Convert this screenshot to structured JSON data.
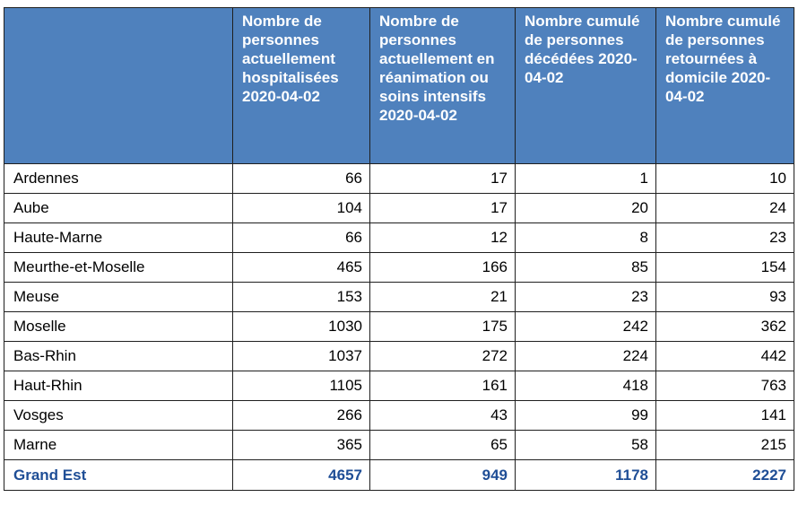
{
  "table": {
    "headers": [
      "",
      "Nombre de personnes actuellement hospitalisées 2020-04-02",
      "Nombre de personnes actuellement en réanimation ou soins intensifs 2020-04-02",
      "Nombre cumulé de personnes décédées 2020-04-02",
      "Nombre cumulé de personnes retournées à domicile 2020-04-02"
    ],
    "rows": [
      [
        "Ardennes",
        "66",
        "17",
        "1",
        "10"
      ],
      [
        "Aube",
        "104",
        "17",
        "20",
        "24"
      ],
      [
        "Haute-Marne",
        "66",
        "12",
        "8",
        "23"
      ],
      [
        "Meurthe-et-Moselle",
        "465",
        "166",
        "85",
        "154"
      ],
      [
        "Meuse",
        "153",
        "21",
        "23",
        "93"
      ],
      [
        "Moselle",
        "1030",
        "175",
        "242",
        "362"
      ],
      [
        "Bas-Rhin",
        "1037",
        "272",
        "224",
        "442"
      ],
      [
        "Haut-Rhin",
        "1105",
        "161",
        "418",
        "763"
      ],
      [
        "Vosges",
        "266",
        "43",
        "99",
        "141"
      ],
      [
        "Marne",
        "365",
        "65",
        "58",
        "215"
      ]
    ],
    "total": [
      "Grand Est",
      "4657",
      "949",
      "1178",
      "2227"
    ]
  },
  "colors": {
    "header_bg": "#4f81bd",
    "header_text": "#ffffff",
    "total_text": "#1f4e96",
    "border": "#1f1f1f"
  }
}
